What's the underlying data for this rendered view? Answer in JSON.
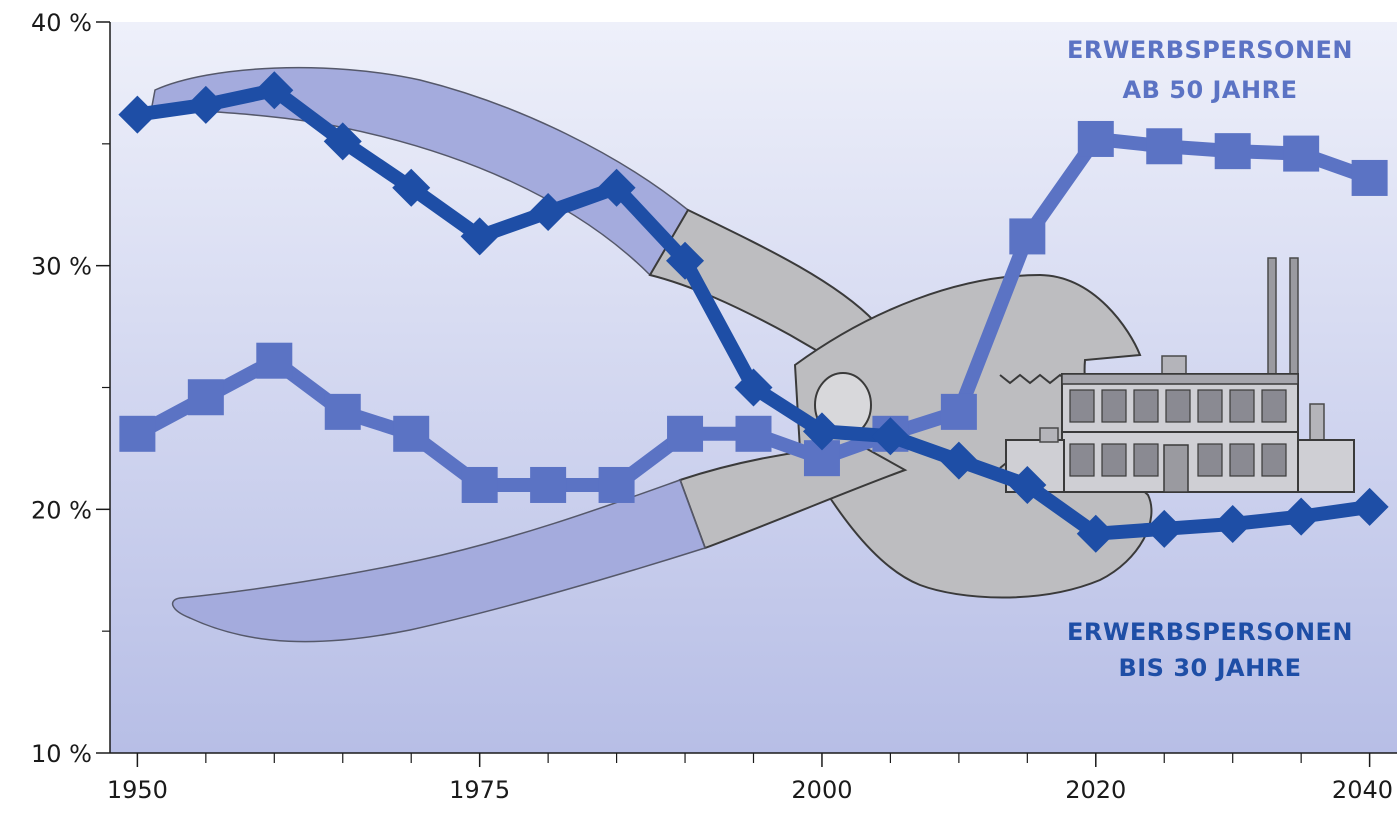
{
  "chart_data": {
    "type": "line",
    "x": [
      1950,
      1955,
      1960,
      1965,
      1970,
      1975,
      1980,
      1985,
      1990,
      1995,
      2000,
      2005,
      2010,
      2015,
      2020,
      2025,
      2030,
      2035,
      2040
    ],
    "series": [
      {
        "name": "ERWERBSPERSONEN AB 50 JAHRE",
        "label_lines": [
          "ERWERBSPERSONEN",
          "AB 50 JAHRE"
        ],
        "marker": "square",
        "color": "#5b73c4",
        "values": [
          23.1,
          24.6,
          26.1,
          24.0,
          23.1,
          21.0,
          21.0,
          21.0,
          23.1,
          23.1,
          22.1,
          23.1,
          24.0,
          31.2,
          35.2,
          34.9,
          34.7,
          34.6,
          33.6
        ]
      },
      {
        "name": "ERWERBSPERSONEN BIS 30 JAHRE",
        "label_lines": [
          "ERWERBSPERSONEN",
          "BIS 30 JAHRE"
        ],
        "marker": "diamond",
        "color": "#1e4ea6",
        "values": [
          36.2,
          36.6,
          37.2,
          35.1,
          33.2,
          31.2,
          32.2,
          33.2,
          30.2,
          25.0,
          23.2,
          23.0,
          22.0,
          21.0,
          19.0,
          19.2,
          19.4,
          19.7,
          20.1
        ]
      }
    ],
    "xlim": [
      1948,
      2042
    ],
    "ylim": [
      10,
      40
    ],
    "yticks": [
      10,
      20,
      30,
      40
    ],
    "ytick_labels": [
      "10 %",
      "20 %",
      "30 %",
      "40 %"
    ],
    "xticks": [
      1950,
      1975,
      2000,
      2020,
      2040
    ],
    "xtick_labels": [
      "1950",
      "1975",
      "2000",
      "2020",
      "2040"
    ],
    "minor_xticks": [
      1955,
      1960,
      1965,
      1970,
      1980,
      1985,
      1990,
      1995,
      2005,
      2010,
      2015,
      2025,
      2030,
      2035
    ],
    "minor_yticks": [
      15,
      25,
      35
    ],
    "colors": {
      "background_top": "#eef0fa",
      "background_bottom": "#b7bee6",
      "pliers_handle": "#a4abdd",
      "pliers_metal": "#bdbdc0",
      "factory_body": "#cfcfd4"
    },
    "illustration": {
      "pliers": "pliers-icon",
      "factory": "factory-icon"
    }
  }
}
